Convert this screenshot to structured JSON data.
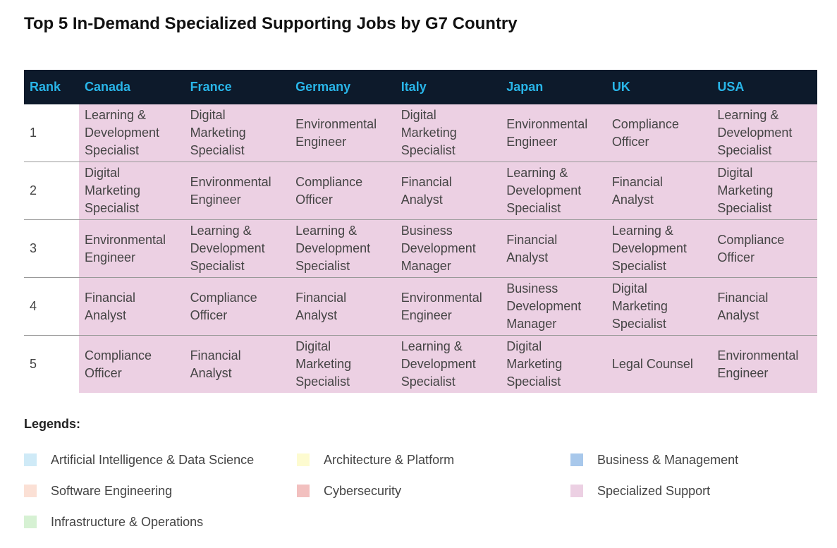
{
  "title": "Top 5 In-Demand Specialized Supporting Jobs by G7 Country",
  "table": {
    "header_fill": "#0d1a2b",
    "header_text_color": "#29b5e8",
    "body_fill": "#ecd0e3",
    "header": [
      "Rank",
      "Canada",
      "France",
      "Germany",
      "Italy",
      "Japan",
      "UK",
      "USA"
    ],
    "rows": [
      [
        1,
        "Learning & Development Specialist",
        "Digital Marketing Specialist",
        "Environmental Engineer",
        "Digital Marketing Specialist",
        "Environmental Engineer",
        "Compliance Officer",
        "Learning & Development Specialist"
      ],
      [
        2,
        "Digital Marketing Specialist",
        "Environmental Engineer",
        "Compliance Officer",
        "Financial Analyst",
        "Learning & Development Specialist",
        "Financial Analyst",
        "Digital Marketing Specialist"
      ],
      [
        3,
        "Environmental Engineer",
        "Learning & Development Specialist",
        "Learning & Development Specialist",
        "Business Development Manager",
        "Financial Analyst",
        "Learning & Development Specialist",
        "Compliance Officer"
      ],
      [
        4,
        "Financial Analyst",
        "Compliance Officer",
        "Financial Analyst",
        "Environmental Engineer",
        "Business Development Manager",
        "Digital Marketing Specialist",
        "Financial Analyst"
      ],
      [
        5,
        "Compliance Officer",
        "Financial Analyst",
        "Digital Marketing Specialist",
        "Learning & Development Specialist",
        "Digital Marketing Specialist",
        "Legal Counsel",
        "Environmental Engineer"
      ]
    ]
  },
  "legend": {
    "title": "Legends:",
    "items": [
      {
        "name": "Artificial Intelligence & Data Science",
        "color": "#cfeaf7"
      },
      {
        "name": "Architecture & Platform",
        "color": "#fdfbd0"
      },
      {
        "name": "Business & Management",
        "color": "#a8c8eb"
      },
      {
        "name": "Software Engineering",
        "color": "#fbe0d5"
      },
      {
        "name": "Cybersecurity",
        "color": "#f2c0bf"
      },
      {
        "name": "Specialized Support",
        "color": "#ecd0e3"
      },
      {
        "name": "Infrastructure & Operations",
        "color": "#d6f1d3"
      }
    ]
  }
}
